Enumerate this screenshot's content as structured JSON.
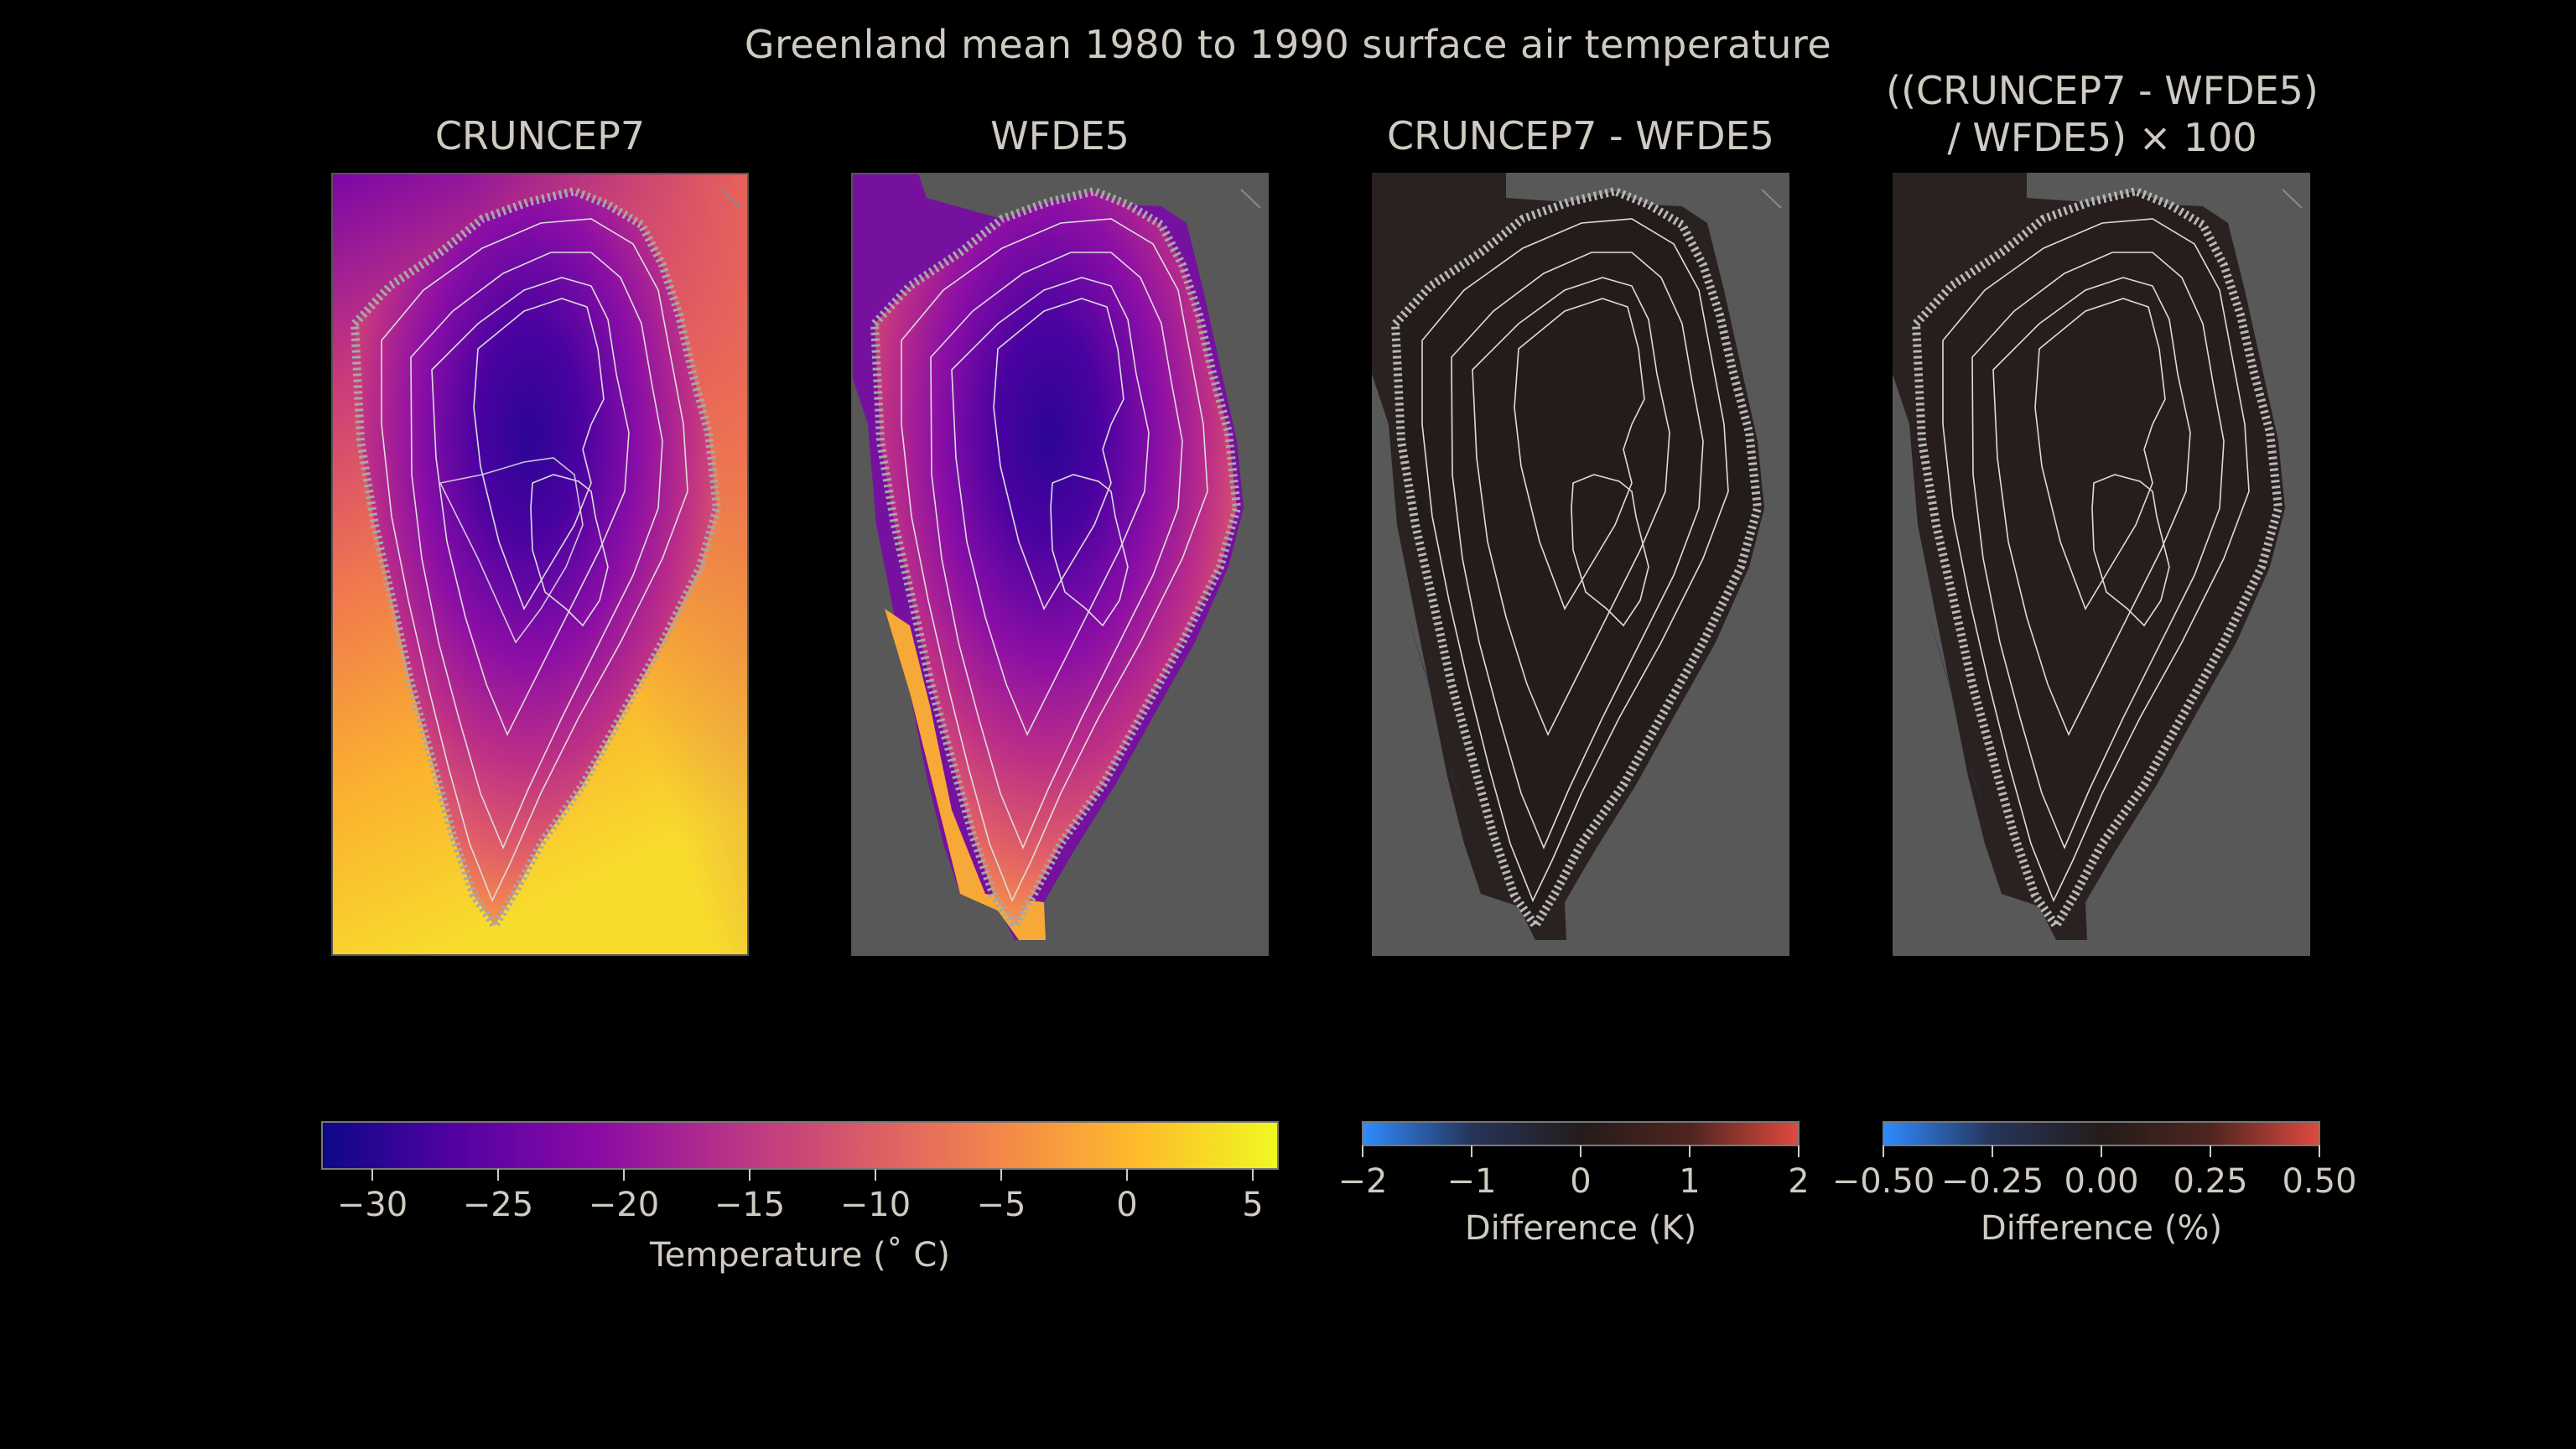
{
  "figure_title": "Greenland mean 1980 to 1990 surface air temperature",
  "panels": [
    {
      "title": "CRUNCEP7",
      "variable": "temperature",
      "units": "°C"
    },
    {
      "title": "WFDE5",
      "variable": "temperature",
      "units": "°C"
    },
    {
      "title": "CRUNCEP7 - WFDE5",
      "variable": "difference",
      "units": "K"
    },
    {
      "title_line1": "((CRUNCEP7 - WFDE5)",
      "title_line2": "/ WFDE5) × 100",
      "variable": "percent difference",
      "units": "%"
    }
  ],
  "chart_data": [
    {
      "type": "heatmap",
      "name": "temperature colorbar",
      "label": "Temperature (˚ C)",
      "range": [
        -32,
        6
      ],
      "ticks": [
        -30,
        -25,
        -20,
        -15,
        -10,
        -5,
        0,
        5
      ],
      "tick_labels": [
        "−30",
        "−25",
        "−20",
        "−15",
        "−10",
        "−5",
        "0",
        "5"
      ],
      "colormap": "plasma",
      "colors": [
        "#0d0887",
        "#5302a3",
        "#8b0aa5",
        "#b83289",
        "#db5c68",
        "#f48849",
        "#febd2a",
        "#f0f921"
      ]
    },
    {
      "type": "heatmap",
      "name": "difference colorbar",
      "label": "Difference (K)",
      "range": [
        -2,
        2
      ],
      "ticks": [
        -2,
        -1,
        0,
        1,
        2
      ],
      "tick_labels": [
        "−2",
        "−1",
        "0",
        "1",
        "2"
      ],
      "colormap": "diverging blue-dark-red",
      "colors": [
        "#2f8bff",
        "#26345a",
        "#241c1a",
        "#4f2420",
        "#e04a3f"
      ]
    },
    {
      "type": "heatmap",
      "name": "percent difference colorbar",
      "label": "Difference (%)",
      "range": [
        -0.5,
        0.5
      ],
      "ticks": [
        -0.5,
        -0.25,
        0,
        0.25,
        0.5
      ],
      "tick_labels": [
        "−0.50",
        "−0.25",
        "0.00",
        "0.25",
        "0.50"
      ],
      "colormap": "diverging blue-dark-red",
      "colors": [
        "#2f8bff",
        "#26345a",
        "#241c1a",
        "#4f2420",
        "#e04a3f"
      ]
    }
  ],
  "colors": {
    "background": "#000000",
    "axes_face": "#585858",
    "text": "#cfcac2",
    "contour": "#dcdcdc",
    "coast": "#a8a8a8"
  }
}
